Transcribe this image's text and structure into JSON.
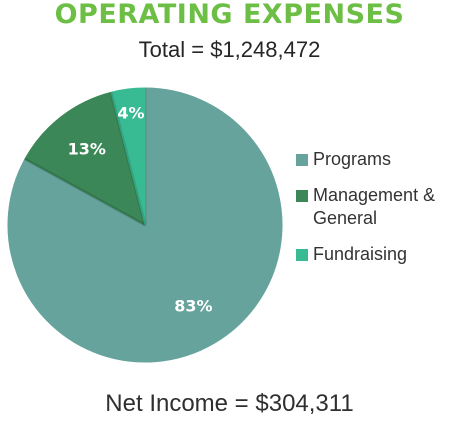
{
  "title": "OPERATING EXPENSES",
  "subtitle": "Total = $1,248,472",
  "footer": "Net Income = $304,311",
  "colors": {
    "title": "#6cbf44",
    "programs": "#66a39c",
    "management": "#3c8757",
    "fundraising": "#38ba92",
    "label": "#ffffff"
  },
  "chart_data": {
    "type": "pie",
    "title": "OPERATING EXPENSES",
    "subtitle": "Total = $1,248,472",
    "legend_position": "right",
    "slices": [
      {
        "name": "Programs",
        "value": 83,
        "label": "83%",
        "color": "#66a39c"
      },
      {
        "name": "Management &\nGeneral",
        "value": 13,
        "label": "13%",
        "color": "#3c8757"
      },
      {
        "name": "Fundraising",
        "value": 4,
        "label": "4%",
        "color": "#38ba92"
      }
    ]
  }
}
